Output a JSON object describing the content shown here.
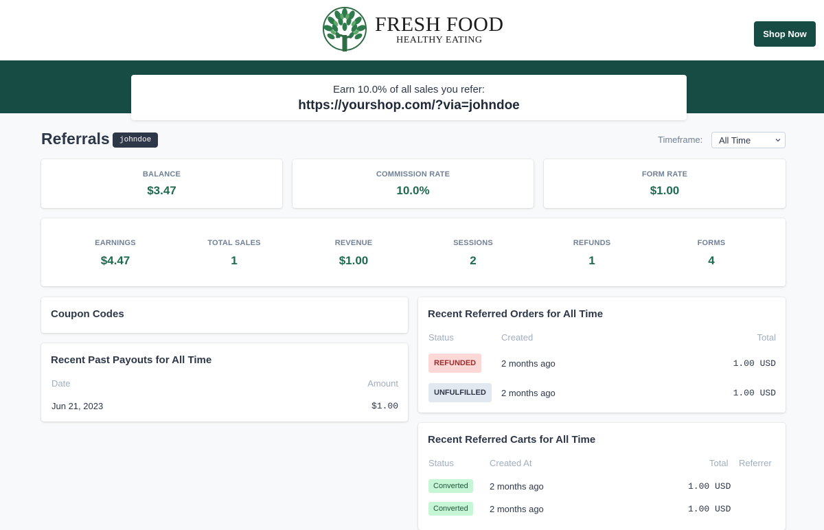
{
  "header": {
    "logo_title": "FRESH FOOD",
    "logo_subtitle": "HEALTHY EATING",
    "shop_button": "Shop Now"
  },
  "referral": {
    "line1": "Earn 10.0% of all sales you refer:",
    "link": "https://yourshop.com/?via=johndoe"
  },
  "page": {
    "title": "Referrals",
    "username": "johndoe",
    "timeframe_label": "Timeframe:",
    "timeframe_value": "All Time"
  },
  "summary": [
    {
      "label": "BALANCE",
      "value": "$3.47"
    },
    {
      "label": "COMMISSION RATE",
      "value": "10.0%"
    },
    {
      "label": "FORM RATE",
      "value": "$1.00"
    }
  ],
  "metrics": [
    {
      "label": "EARNINGS",
      "value": "$4.47"
    },
    {
      "label": "TOTAL SALES",
      "value": "1"
    },
    {
      "label": "REVENUE",
      "value": "$1.00"
    },
    {
      "label": "SESSIONS",
      "value": "2"
    },
    {
      "label": "REFUNDS",
      "value": "1"
    },
    {
      "label": "FORMS",
      "value": "4"
    }
  ],
  "coupons": {
    "title": "Coupon Codes"
  },
  "payouts": {
    "title": "Recent Past Payouts for All Time",
    "col_date": "Date",
    "col_amount": "Amount",
    "rows": [
      {
        "date": "Jun 21, 2023",
        "amount": "$1.00"
      }
    ]
  },
  "orders": {
    "title": "Recent Referred Orders for All Time",
    "col_status": "Status",
    "col_created": "Created",
    "col_total": "Total",
    "rows": [
      {
        "status": "REFUNDED",
        "created": "2 months ago",
        "total": "1.00 USD"
      },
      {
        "status": "UNFULFILLED",
        "created": "2 months ago",
        "total": "1.00 USD"
      }
    ]
  },
  "carts": {
    "title": "Recent Referred Carts for All Time",
    "col_status": "Status",
    "col_created": "Created At",
    "col_total": "Total",
    "col_referrer": "Referrer",
    "rows": [
      {
        "status": "Converted",
        "created": "2 months ago",
        "total": "1.00 USD"
      },
      {
        "status": "Converted",
        "created": "2 months ago",
        "total": "1.00 USD"
      }
    ]
  },
  "colors": {
    "brand": "#174c45",
    "value_green": "#1e6b50",
    "refunded_bg": "#fed7d7",
    "converted_bg": "#c6f6d5"
  },
  "icons": [
    "tree-logo-icon",
    "chevron-down-icon"
  ]
}
